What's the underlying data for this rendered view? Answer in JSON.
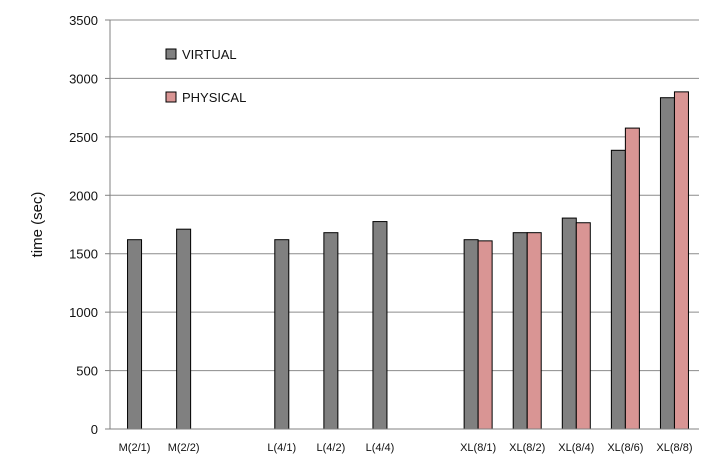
{
  "chart_data": {
    "type": "bar",
    "ylabel": "time (sec)",
    "xlabel": "",
    "ylim": [
      0,
      3500
    ],
    "yticks": [
      0,
      500,
      1000,
      1500,
      2000,
      2500,
      3000,
      3500
    ],
    "grid": true,
    "legend_position": "top-left",
    "categories": [
      "M(2/1)",
      "M(2/2)",
      "",
      "L(4/1)",
      "L(4/2)",
      "L(4/4)",
      "",
      "XL(8/1)",
      "XL(8/2)",
      "XL(8/4)",
      "XL(8/6)",
      "XL(8/8)"
    ],
    "series": [
      {
        "name": "VIRTUAL",
        "color": "#808080",
        "values": [
          1620,
          1710,
          null,
          1620,
          1680,
          1775,
          null,
          1620,
          1680,
          1805,
          2385,
          2835
        ]
      },
      {
        "name": "PHYSICAL",
        "color": "#d99594",
        "values": [
          null,
          null,
          null,
          null,
          null,
          null,
          null,
          1610,
          1680,
          1765,
          2575,
          2885
        ]
      }
    ]
  }
}
